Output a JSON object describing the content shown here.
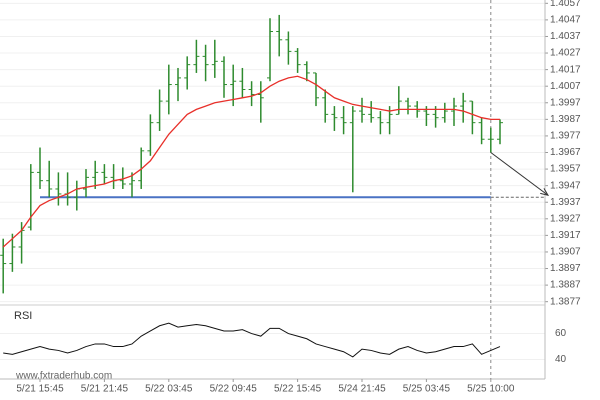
{
  "chart_data": {
    "type": "ohlc",
    "watermark": "www.fxtraderhub.com",
    "categories": [
      null,
      null,
      null,
      null,
      "5/21 15:45",
      null,
      null,
      null,
      null,
      null,
      null,
      "5/21 21:45",
      null,
      null,
      null,
      null,
      null,
      null,
      "5/22 03:45",
      null,
      null,
      null,
      null,
      null,
      null,
      "5/22 09:45",
      null,
      null,
      null,
      null,
      null,
      null,
      "5/22 15:45",
      null,
      null,
      null,
      null,
      null,
      null,
      "5/24 21:45",
      null,
      null,
      null,
      null,
      null,
      null,
      "5/25 03:45",
      null,
      null,
      null,
      null,
      null,
      null,
      "5/25 10:00",
      null
    ],
    "open": [
      1.3905,
      1.39,
      1.391,
      1.3922,
      1.3955,
      1.395,
      1.3945,
      1.3942,
      1.394,
      1.3945,
      1.3952,
      1.3955,
      1.3952,
      1.395,
      1.3948,
      1.395,
      1.3968,
      1.3985,
      1.3998,
      1.4008,
      1.4012,
      1.402,
      1.4025,
      1.402,
      1.4022,
      1.4008,
      1.401,
      1.4005,
      1.4002,
      1.4012,
      1.404,
      1.4035,
      1.4028,
      1.402,
      1.4015,
      1.4,
      1.399,
      1.3988,
      1.3985,
      1.3992,
      1.399,
      1.3988,
      1.3985,
      1.399,
      1.3998,
      1.3995,
      1.3992,
      1.399,
      1.3988,
      1.3992,
      1.3995,
      1.3998,
      1.3985,
      1.3975,
      1.3975
    ],
    "high": [
      1.3915,
      1.3918,
      1.3925,
      1.396,
      1.397,
      1.3962,
      1.3955,
      1.3955,
      1.395,
      1.3957,
      1.3962,
      1.396,
      1.396,
      1.3958,
      1.3955,
      1.397,
      1.399,
      1.4005,
      1.402,
      1.4018,
      1.4025,
      1.4035,
      1.4032,
      1.4035,
      1.4025,
      1.402,
      1.4018,
      1.401,
      1.401,
      1.4048,
      1.405,
      1.404,
      1.403,
      1.4022,
      1.4015,
      1.4005,
      1.3995,
      1.3995,
      1.3995,
      1.4,
      1.3998,
      1.3992,
      1.3995,
      1.4007,
      1.4,
      1.3998,
      1.3995,
      1.3995,
      1.3997,
      1.4,
      1.4003,
      1.3998,
      1.3988,
      1.3982,
      1.3987
    ],
    "low": [
      1.3882,
      1.3895,
      1.39,
      1.392,
      1.3945,
      1.394,
      1.3935,
      1.3935,
      1.3932,
      1.394,
      1.3945,
      1.3948,
      1.3945,
      1.3945,
      1.394,
      1.3945,
      1.3965,
      1.398,
      1.399,
      1.3998,
      1.4005,
      1.4015,
      1.401,
      1.4012,
      1.4,
      1.3995,
      1.4,
      1.3995,
      1.3985,
      1.401,
      1.4025,
      1.402,
      1.4015,
      1.401,
      1.3995,
      1.3985,
      1.398,
      1.3978,
      1.3943,
      1.3985,
      1.3985,
      1.3978,
      1.3978,
      1.399,
      1.399,
      1.3988,
      1.3983,
      1.3982,
      1.3985,
      1.3983,
      1.3985,
      1.3978,
      1.3972,
      1.3967,
      1.3972
    ],
    "close": [
      1.39,
      1.391,
      1.392,
      1.3955,
      1.395,
      1.3945,
      1.3942,
      1.394,
      1.3945,
      1.3952,
      1.3955,
      1.3952,
      1.395,
      1.3948,
      1.395,
      1.3968,
      1.3985,
      1.3998,
      1.4008,
      1.4012,
      1.402,
      1.4025,
      1.402,
      1.4022,
      1.4008,
      1.401,
      1.4005,
      1.4002,
      1.4,
      1.404,
      1.4035,
      1.4028,
      1.402,
      1.4015,
      1.4,
      1.399,
      1.3988,
      1.3985,
      1.3992,
      1.399,
      1.3988,
      1.3985,
      1.399,
      1.3998,
      1.3995,
      1.3992,
      1.399,
      1.3988,
      1.3992,
      1.3995,
      1.3998,
      1.3985,
      1.3975,
      1.3975,
      1.3985
    ],
    "color": "#2e8b2e",
    "ma": {
      "color": "#e8302a",
      "values": [
        1.391,
        1.3915,
        1.392,
        1.3928,
        1.3935,
        1.3938,
        1.394,
        1.3942,
        1.3945,
        1.3946,
        1.3947,
        1.3948,
        1.395,
        1.3951,
        1.3953,
        1.3957,
        1.3962,
        1.397,
        1.3978,
        1.3984,
        1.399,
        1.3993,
        1.3995,
        1.3997,
        1.3998,
        1.3999,
        1.4,
        1.4001,
        1.4003,
        1.4007,
        1.401,
        1.4012,
        1.4013,
        1.4011,
        1.4008,
        1.4004,
        1.4,
        1.3998,
        1.3996,
        1.3995,
        1.3994,
        1.3993,
        1.3992,
        1.3993,
        1.3993,
        1.3993,
        1.3993,
        1.3993,
        1.3993,
        1.3993,
        1.3992,
        1.399,
        1.3988,
        1.3987,
        1.3987
      ]
    },
    "target_level": 1.394,
    "target_color": "#4a72c4",
    "ylim": [
      1.3875,
      1.4059
    ],
    "yticks": [
      1.4057,
      1.4047,
      1.4037,
      1.4027,
      1.4017,
      1.4007,
      1.3997,
      1.3987,
      1.3977,
      1.3967,
      1.3957,
      1.3947,
      1.3937,
      1.3927,
      1.3917,
      1.3907,
      1.3897,
      1.3887,
      1.3877
    ],
    "grid": true,
    "rsi": {
      "label": "RSI",
      "color": "#111111",
      "ylim": [
        25,
        82
      ],
      "yticks": [
        60,
        40
      ],
      "values": [
        45,
        44,
        46,
        48,
        50,
        48,
        47,
        45,
        47,
        50,
        52,
        52,
        50,
        50,
        52,
        58,
        62,
        66,
        68,
        65,
        66,
        67,
        66,
        64,
        62,
        62,
        63,
        60,
        58,
        64,
        64,
        60,
        58,
        56,
        52,
        50,
        48,
        46,
        42,
        48,
        47,
        45,
        44,
        48,
        50,
        47,
        45,
        46,
        48,
        50,
        50,
        52,
        44,
        47,
        50
      ]
    }
  }
}
